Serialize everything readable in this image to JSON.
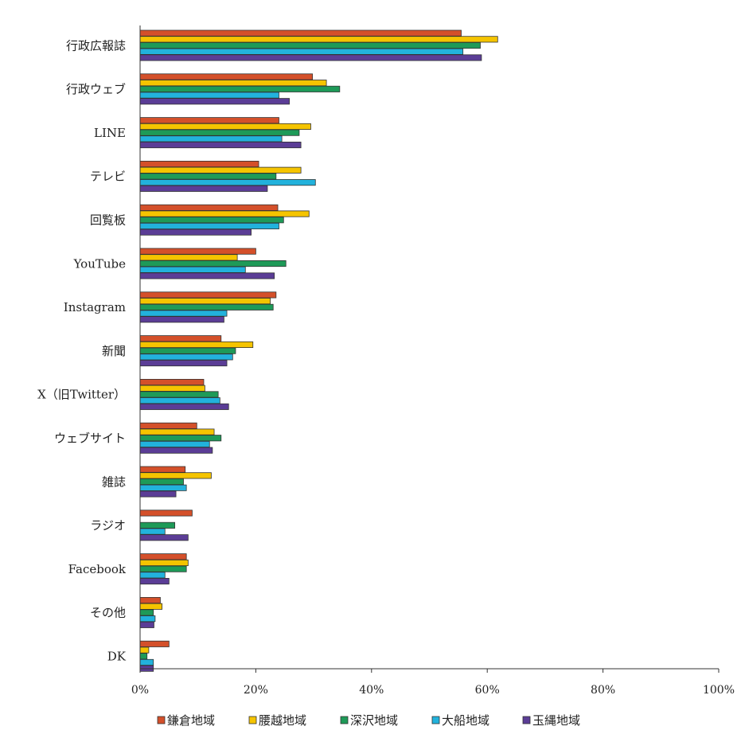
{
  "chart_data": {
    "type": "bar",
    "orientation": "horizontal",
    "categories": [
      "行政広報誌",
      "行政ウェブ",
      "LINE",
      "テレビ",
      "回覧板",
      "YouTube",
      "Instagram",
      "新聞",
      "X（旧Twitter）",
      "ウェブサイト",
      "雑誌",
      "ラジオ",
      "Facebook",
      "その他",
      "DK"
    ],
    "series": [
      {
        "name": "鎌倉地域",
        "color": "#d4502a",
        "values": [
          55.5,
          29.8,
          24.0,
          20.5,
          23.8,
          20.0,
          23.5,
          14.0,
          11.0,
          9.8,
          7.8,
          9.0,
          8.0,
          3.5,
          5.0
        ]
      },
      {
        "name": "腰越地域",
        "color": "#f5c400",
        "values": [
          61.8,
          32.2,
          29.5,
          27.8,
          29.2,
          16.8,
          22.5,
          19.5,
          11.2,
          12.8,
          12.3,
          0,
          8.3,
          3.8,
          1.5
        ]
      },
      {
        "name": "深沢地域",
        "color": "#1e9a58",
        "values": [
          58.8,
          34.5,
          27.5,
          23.5,
          24.8,
          25.2,
          23.0,
          16.5,
          13.5,
          14.0,
          7.5,
          6.0,
          8.0,
          2.3,
          1.2
        ]
      },
      {
        "name": "大船地域",
        "color": "#22b2dc",
        "values": [
          55.8,
          24.0,
          24.5,
          30.3,
          24.0,
          18.2,
          15.0,
          16.0,
          13.8,
          12.0,
          8.0,
          4.3,
          4.3,
          2.6,
          2.3
        ]
      },
      {
        "name": "玉縄地域",
        "color": "#5b3d96",
        "values": [
          59.0,
          25.8,
          27.8,
          22.0,
          19.2,
          23.2,
          14.5,
          15.0,
          15.3,
          12.5,
          6.2,
          8.3,
          5.0,
          2.4,
          2.3
        ]
      }
    ],
    "xlim": [
      0,
      100
    ],
    "xticks": [
      "0%",
      "20%",
      "40%",
      "60%",
      "80%",
      "100%"
    ],
    "legend_position": "bottom"
  }
}
